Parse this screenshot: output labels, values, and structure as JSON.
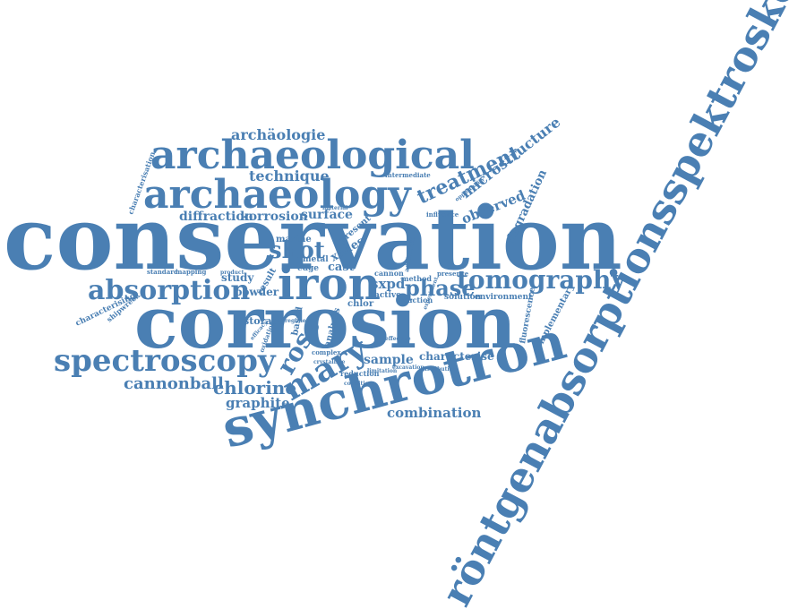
{
  "color": "#4a7fb3",
  "words": [
    "röntgenabsorptionsspektroskopie",
    "conservation",
    "corrosion",
    "synchrotron",
    "archaeological",
    "archaeology",
    "iron",
    "absorption",
    "tomography",
    "spectroscopy",
    "mary",
    "rose",
    "shot",
    "treatment",
    "microstructure",
    "phase",
    "archäologie",
    "technique",
    "diffraction",
    "korrosion",
    "surface",
    "observed",
    "degradation",
    "cannonball",
    "chlorine",
    "graphite",
    "combination",
    "sample",
    "characterise",
    "sxpd",
    "cast",
    "xanes",
    "study",
    "powder",
    "metal",
    "edge",
    "marine",
    "storage",
    "chlor",
    "solution",
    "environment",
    "active",
    "reaction",
    "method",
    "cannon",
    "complementary",
    "fluorescence",
    "characterising",
    "shipwreck",
    "present",
    "standard",
    "mapping",
    "product",
    "result",
    "based",
    "analysis",
    "complex",
    "reduction",
    "limitation",
    "condition",
    "excavation",
    "distribution",
    "intermediate",
    "opportunity",
    "influence",
    "characterisation",
    "material",
    "presence",
    "additional",
    "effective",
    "crystalline",
    "oxidation",
    "efficacy",
    "regime",
    "experiment"
  ]
}
